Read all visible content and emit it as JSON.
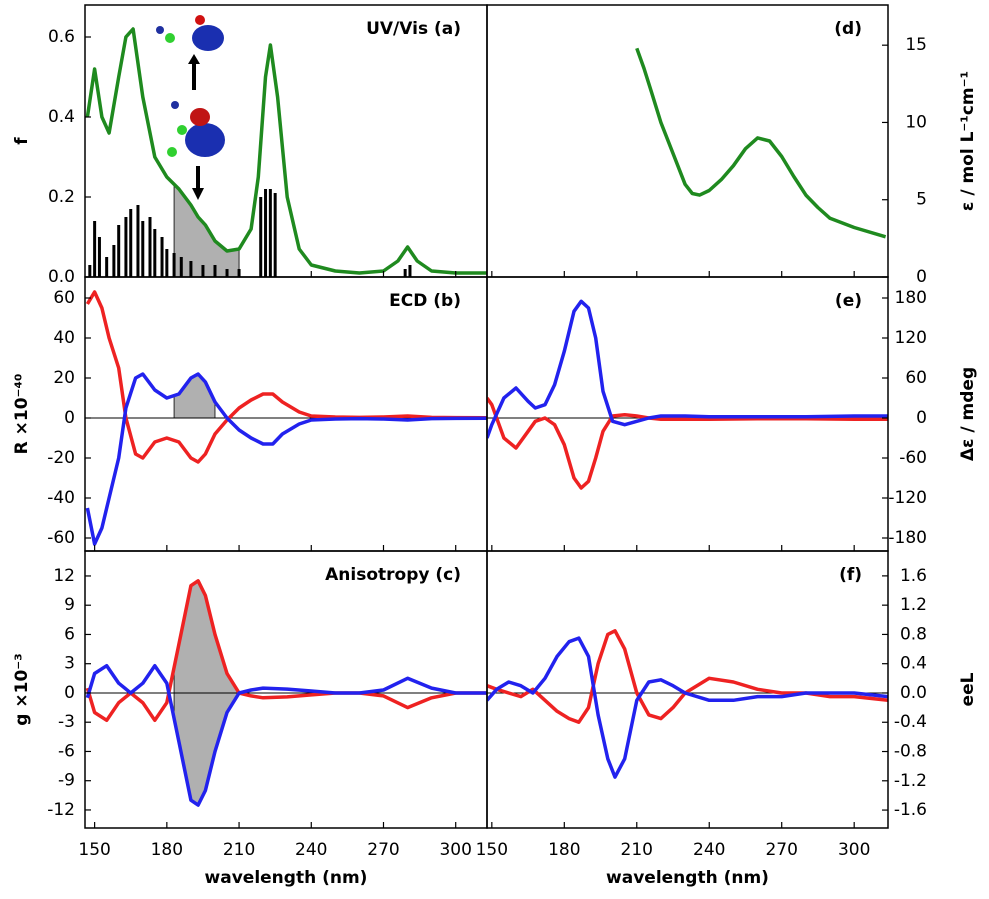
{
  "chart_data": [
    {
      "type": "line",
      "title": "UV/Vis (a)",
      "ylabel": "f",
      "axis_side": "left",
      "xlim": [
        146,
        313
      ],
      "ylim": [
        0,
        0.68
      ],
      "xticks": [
        150,
        180,
        210,
        240,
        270,
        300
      ],
      "yticks": [
        {
          "value": 0,
          "label": "0.0"
        },
        0.2,
        0.4,
        0.6
      ],
      "x": [
        147,
        150,
        153,
        156,
        160,
        163,
        166,
        170,
        175,
        180,
        185,
        190,
        193,
        196,
        200,
        205,
        210,
        215,
        218,
        221,
        223,
        226,
        230,
        235,
        240,
        250,
        260,
        270,
        276,
        280,
        284,
        290,
        300,
        313
      ],
      "series": [
        {
          "color": "#1f8a1f",
          "values": [
            0.4,
            0.52,
            0.4,
            0.36,
            0.5,
            0.6,
            0.62,
            0.45,
            0.3,
            0.25,
            0.22,
            0.18,
            0.15,
            0.13,
            0.09,
            0.065,
            0.07,
            0.12,
            0.25,
            0.5,
            0.58,
            0.45,
            0.2,
            0.07,
            0.03,
            0.015,
            0.01,
            0.015,
            0.04,
            0.075,
            0.04,
            0.015,
            0.01,
            0.01
          ]
        },
        {
          "style": "stick",
          "color": "#000000",
          "x": [
            148,
            150,
            152,
            155,
            158,
            160,
            163,
            165,
            168,
            170,
            173,
            175,
            178,
            180,
            183,
            186,
            190,
            195,
            200,
            205,
            210,
            219,
            221,
            223,
            225,
            279,
            281
          ],
          "values": [
            0.03,
            0.14,
            0.1,
            0.05,
            0.08,
            0.13,
            0.15,
            0.17,
            0.18,
            0.14,
            0.15,
            0.12,
            0.1,
            0.07,
            0.06,
            0.05,
            0.04,
            0.03,
            0.03,
            0.02,
            0.02,
            0.2,
            0.22,
            0.22,
            0.21,
            0.02,
            0.03
          ]
        }
      ],
      "shade": {
        "range": [
          183,
          210
        ],
        "series": [
          0
        ]
      }
    },
    {
      "type": "line",
      "title": "ECD (b)",
      "ylabel": "R ×10⁻⁴⁰",
      "axis_side": "left",
      "zero_line": true,
      "xlim": [
        146,
        313
      ],
      "ylim": [
        -66.5,
        70.5
      ],
      "xticks": [
        150,
        180,
        210,
        240,
        270,
        300
      ],
      "yticks": [
        -60,
        -40,
        -20,
        0,
        20,
        40,
        60
      ],
      "x": [
        147,
        150,
        153,
        156,
        160,
        163,
        167,
        170,
        175,
        180,
        185,
        190,
        193,
        196,
        200,
        205,
        210,
        215,
        220,
        224,
        228,
        235,
        240,
        250,
        260,
        270,
        280,
        290,
        300,
        313
      ],
      "series": [
        {
          "color": "#ee2222",
          "values": [
            57,
            63,
            55,
            40,
            25,
            0,
            -18,
            -20,
            -12,
            -10,
            -12,
            -20,
            -22,
            -18,
            -8,
            -1,
            5,
            9,
            12,
            12,
            8,
            3,
            1,
            0.5,
            0.3,
            0.5,
            1,
            0.3,
            0.2,
            0.1
          ]
        },
        {
          "color": "#2222ee",
          "values": [
            -45,
            -63,
            -55,
            -40,
            -20,
            5,
            20,
            22,
            14,
            10,
            12,
            20,
            22,
            18,
            8,
            0,
            -6,
            -10,
            -13,
            -13,
            -8,
            -3,
            -1,
            -0.5,
            -0.3,
            -0.5,
            -1,
            -0.3,
            -0.2,
            -0.1
          ]
        }
      ],
      "shade": {
        "range": [
          183,
          200
        ],
        "series": [
          1
        ]
      }
    },
    {
      "type": "line",
      "title": "Anisotropy (c)",
      "ylabel": "g ×10⁻³",
      "xlabel": "wavelength (nm)",
      "axis_side": "left",
      "zero_line": true,
      "xlim": [
        146,
        313
      ],
      "ylim": [
        -13.85,
        14.56
      ],
      "xticks": [
        150,
        180,
        210,
        240,
        270,
        300
      ],
      "yticks": [
        -12,
        -9,
        -6,
        -3,
        0,
        3,
        6,
        9,
        12
      ],
      "x": [
        147,
        150,
        155,
        160,
        165,
        170,
        175,
        180,
        185,
        190,
        193,
        196,
        200,
        205,
        210,
        215,
        220,
        230,
        240,
        250,
        260,
        270,
        280,
        290,
        300,
        313
      ],
      "series": [
        {
          "color": "#ee2222",
          "values": [
            0.5,
            -2,
            -2.8,
            -1,
            0,
            -1,
            -2.8,
            -1,
            5,
            11,
            11.5,
            10,
            6,
            2,
            0,
            -0.3,
            -0.5,
            -0.4,
            -0.2,
            0,
            0,
            -0.3,
            -1.5,
            -0.5,
            0,
            0
          ]
        },
        {
          "color": "#2222ee",
          "values": [
            -0.5,
            2,
            2.8,
            1,
            0,
            1,
            2.8,
            1,
            -5,
            -11,
            -11.5,
            -10,
            -6,
            -2,
            0,
            0.3,
            0.5,
            0.4,
            0.2,
            0,
            0,
            0.3,
            1.5,
            0.5,
            0,
            0
          ]
        }
      ],
      "shade": {
        "range": [
          183,
          210
        ],
        "series": [
          0,
          1
        ]
      }
    },
    {
      "type": "line",
      "title": "(d)",
      "ylabel": "ε / mol L⁻¹cm⁻¹",
      "axis_side": "right",
      "xlim": [
        148,
        314
      ],
      "ylim": [
        0,
        17.6
      ],
      "xticks": [
        150,
        180,
        210,
        240,
        270,
        300
      ],
      "yticks": [
        0,
        5,
        10,
        15
      ],
      "x": [
        210,
        213,
        216,
        220,
        225,
        230,
        233,
        236,
        240,
        245,
        250,
        255,
        260,
        265,
        270,
        275,
        280,
        285,
        290,
        300,
        313
      ],
      "series": [
        {
          "color": "#1f8a1f",
          "values": [
            14.8,
            13.5,
            12,
            10,
            8,
            6,
            5.4,
            5.3,
            5.6,
            6.3,
            7.2,
            8.3,
            9,
            8.8,
            7.8,
            6.5,
            5.3,
            4.5,
            3.8,
            3.2,
            2.6
          ]
        }
      ]
    },
    {
      "type": "line",
      "title": "(e)",
      "ylabel": "Δε / mdeg",
      "axis_side": "right",
      "zero_line": true,
      "xlim": [
        148,
        314
      ],
      "ylim": [
        -199.5,
        211.5
      ],
      "xticks": [
        150,
        180,
        210,
        240,
        270,
        300
      ],
      "yticks": [
        -180,
        -120,
        -60,
        0,
        60,
        120,
        180
      ],
      "x": [
        148,
        150,
        155,
        160,
        165,
        168,
        172,
        176,
        180,
        184,
        187,
        190,
        193,
        196,
        200,
        205,
        210,
        215,
        220,
        230,
        240,
        260,
        280,
        300,
        314
      ],
      "series": [
        {
          "color": "#ee2222",
          "values": [
            30,
            20,
            -30,
            -45,
            -20,
            -5,
            0,
            -10,
            -40,
            -90,
            -105,
            -95,
            -60,
            -20,
            3,
            5,
            3,
            0,
            -2,
            -2,
            -2,
            -1,
            -1,
            -2,
            -2
          ]
        },
        {
          "color": "#2222ee",
          "values": [
            -30,
            -10,
            30,
            45,
            25,
            15,
            20,
            50,
            100,
            160,
            175,
            165,
            120,
            40,
            -5,
            -10,
            -5,
            0,
            3,
            3,
            2,
            2,
            2,
            3,
            3
          ]
        }
      ]
    },
    {
      "type": "line",
      "title": "(f)",
      "ylabel": "eeL",
      "xlabel": "wavelength (nm)",
      "axis_side": "right",
      "zero_line": true,
      "xlim": [
        148,
        314
      ],
      "ylim": [
        -1.845,
        1.94
      ],
      "xticks": [
        150,
        180,
        210,
        240,
        270,
        300
      ],
      "yticks": [
        -1.6,
        -1.2,
        -0.8,
        -0.4,
        {
          "value": 0,
          "label": "0.0"
        },
        0.4,
        0.8,
        1.2,
        1.6
      ],
      "x": [
        148,
        152,
        157,
        162,
        167,
        172,
        177,
        182,
        186,
        190,
        194,
        198,
        201,
        205,
        210,
        215,
        220,
        225,
        230,
        240,
        250,
        260,
        270,
        280,
        290,
        300,
        314
      ],
      "series": [
        {
          "color": "#ee2222",
          "values": [
            0.1,
            0.05,
            0,
            -0.05,
            0.05,
            -0.1,
            -0.25,
            -0.35,
            -0.4,
            -0.2,
            0.4,
            0.8,
            0.85,
            0.6,
            0,
            -0.3,
            -0.35,
            -0.2,
            0,
            0.2,
            0.15,
            0.05,
            0,
            0,
            -0.05,
            -0.05,
            -0.1
          ]
        },
        {
          "color": "#2222ee",
          "values": [
            -0.1,
            0.05,
            0.15,
            0.1,
            0,
            0.2,
            0.5,
            0.7,
            0.75,
            0.5,
            -0.3,
            -0.9,
            -1.15,
            -0.9,
            -0.1,
            0.15,
            0.18,
            0.1,
            0,
            -0.1,
            -0.1,
            -0.05,
            -0.05,
            0,
            0,
            0,
            -0.05
          ]
        }
      ]
    }
  ]
}
